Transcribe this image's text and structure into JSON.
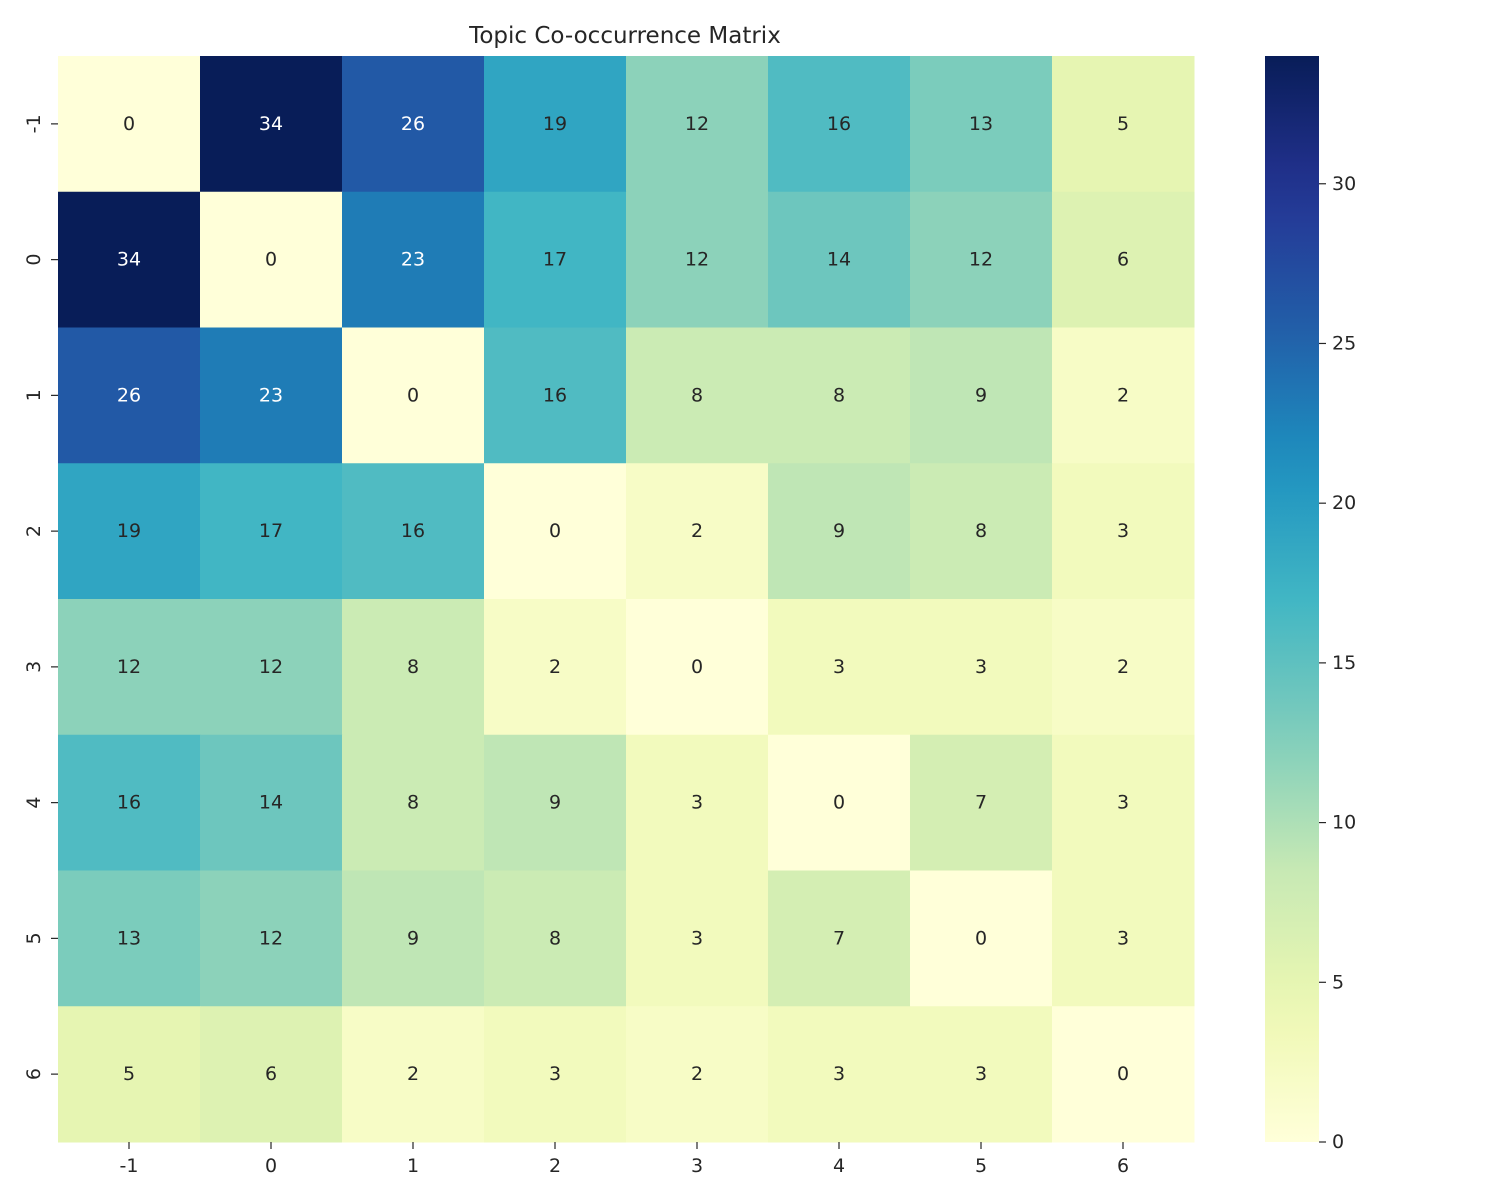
{
  "chart_data": {
    "type": "heatmap",
    "title": "Topic Co-occurrence Matrix",
    "xlabel": "",
    "ylabel": "",
    "x_categories": [
      "-1",
      "0",
      "1",
      "2",
      "3",
      "4",
      "5",
      "6"
    ],
    "y_categories": [
      "-1",
      "0",
      "1",
      "2",
      "3",
      "4",
      "5",
      "6"
    ],
    "values": [
      [
        0,
        34,
        26,
        19,
        12,
        16,
        13,
        5
      ],
      [
        34,
        0,
        23,
        17,
        12,
        14,
        12,
        6
      ],
      [
        26,
        23,
        0,
        16,
        8,
        8,
        9,
        2
      ],
      [
        19,
        17,
        16,
        0,
        2,
        9,
        8,
        3
      ],
      [
        12,
        12,
        8,
        2,
        0,
        3,
        3,
        2
      ],
      [
        16,
        14,
        8,
        9,
        3,
        0,
        7,
        3
      ],
      [
        13,
        12,
        9,
        8,
        3,
        7,
        0,
        3
      ],
      [
        5,
        6,
        2,
        3,
        2,
        3,
        3,
        0
      ]
    ],
    "colormap": "YlGnBu",
    "vmin": 0,
    "vmax": 34,
    "colorbar_ticks": [
      0,
      5,
      10,
      15,
      20,
      25,
      30
    ],
    "annotate": true,
    "grid": false
  }
}
